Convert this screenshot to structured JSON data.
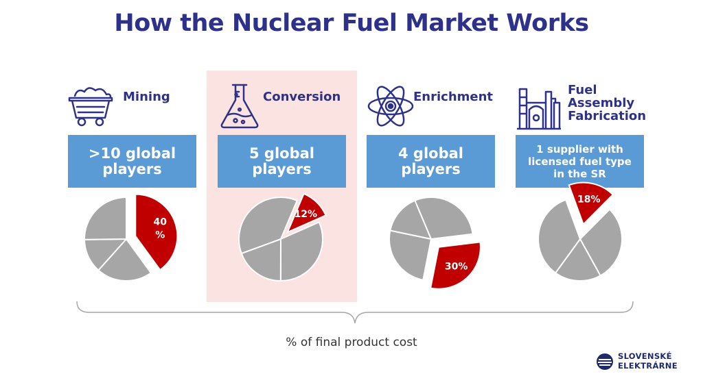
{
  "title": "How the Nuclear Fuel Market Works",
  "caption": "% of final product cost",
  "logo": {
    "line1": "SLOVENSKÉ",
    "line2": "ELEKTRÁRNE"
  },
  "colors": {
    "title": "#2e3189",
    "box": "#5b9bd5",
    "highlight_bg": "#fbe3e1",
    "slice_red": "#c00000",
    "slice_gray": "#a6a6a6"
  },
  "stages": [
    {
      "label_lines": [
        "Mining"
      ],
      "box_lines": [
        ">10 global",
        "players"
      ],
      "icon": "mine-cart-icon",
      "highlighted": false
    },
    {
      "label_lines": [
        "Conversion"
      ],
      "box_lines": [
        "5 global",
        "players"
      ],
      "icon": "flask-icon",
      "highlighted": true
    },
    {
      "label_lines": [
        "Enrichment"
      ],
      "box_lines": [
        "4 global",
        "players"
      ],
      "icon": "atom-icon",
      "highlighted": false
    },
    {
      "label_lines": [
        "Fuel",
        "Assembly",
        "Fabrication"
      ],
      "box_lines": [
        "1 supplier with",
        "licensed fuel type",
        "in the SR"
      ],
      "icon": "factory-icon",
      "highlighted": false
    }
  ],
  "chart_data": {
    "type": "pie",
    "slices": [
      {
        "name": "Mining",
        "value": 40,
        "label_lines": [
          "40",
          "%"
        ]
      },
      {
        "name": "Conversion",
        "value": 12,
        "label_lines": [
          "12%"
        ]
      },
      {
        "name": "Enrichment",
        "value": 30,
        "label_lines": [
          "30%"
        ]
      },
      {
        "name": "Fuel Assembly Fabrication",
        "value": 18,
        "label_lines": [
          "18%"
        ]
      }
    ]
  }
}
